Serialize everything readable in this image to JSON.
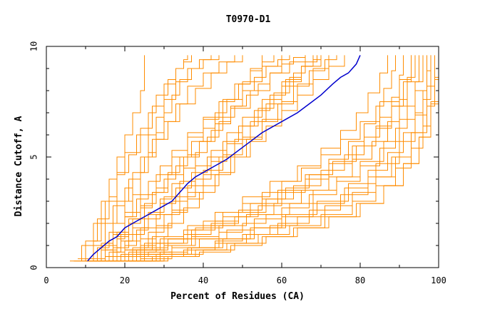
{
  "chart_data": {
    "type": "line",
    "title": "T0970-D1",
    "xlabel": "Percent of Residues (CA)",
    "ylabel": "Distance Cutoff, A",
    "xlim": [
      0,
      100
    ],
    "ylim": [
      0,
      10
    ],
    "x_ticks": [
      "0",
      "20",
      "40",
      "60",
      "80",
      "100"
    ],
    "y_ticks": [
      "0",
      "5",
      "10"
    ],
    "grid": false,
    "background_color": "#ffffff",
    "series_color": "#ff8c00",
    "highlight_color": "#0000cd",
    "highlight": {
      "x": [
        10.5,
        12,
        14,
        16,
        18,
        20,
        23,
        26,
        29,
        32,
        34,
        36,
        38,
        40,
        43,
        46,
        49,
        52,
        55,
        58,
        61,
        64,
        67,
        70,
        73,
        75,
        77,
        79,
        80
      ],
      "y": [
        0.3,
        0.6,
        0.9,
        1.2,
        1.4,
        1.8,
        2.1,
        2.4,
        2.7,
        3.0,
        3.4,
        3.8,
        4.1,
        4.3,
        4.6,
        4.9,
        5.3,
        5.7,
        6.1,
        6.4,
        6.7,
        7.0,
        7.4,
        7.8,
        8.3,
        8.6,
        8.8,
        9.2,
        9.6
      ]
    },
    "series": [
      {
        "x": [
          6,
          9,
          12,
          14,
          16,
          18,
          20,
          22,
          24,
          25,
          25
        ],
        "y": [
          0.3,
          1.0,
          2.0,
          3.0,
          4.0,
          5.0,
          6.0,
          7.0,
          8.0,
          9.0,
          9.6
        ]
      },
      {
        "x": [
          7,
          10,
          12,
          15,
          18,
          20,
          24,
          27,
          30,
          33,
          35,
          37
        ],
        "y": [
          0.3,
          1.0,
          2.0,
          3.0,
          4.2,
          5.2,
          6.3,
          7.3,
          8.3,
          9.0,
          9.3,
          9.6
        ]
      },
      {
        "x": [
          8,
          10,
          13,
          16,
          18,
          21,
          23,
          26,
          28,
          31,
          33,
          35,
          36
        ],
        "y": [
          0.4,
          1.2,
          2.2,
          3.2,
          4.3,
          5.1,
          6.0,
          7.0,
          7.8,
          8.5,
          9.0,
          9.4,
          9.6
        ]
      },
      {
        "x": [
          9,
          12,
          15,
          18,
          21,
          24,
          27,
          30,
          33,
          36,
          40,
          44,
          48
        ],
        "y": [
          0.3,
          1.0,
          2.0,
          3.0,
          4.0,
          5.0,
          5.8,
          6.6,
          7.4,
          8.2,
          8.8,
          9.3,
          9.6
        ]
      },
      {
        "x": [
          10,
          12,
          14,
          17,
          20,
          22,
          25,
          28,
          31,
          34,
          38,
          42,
          46,
          50
        ],
        "y": [
          0.4,
          1.2,
          2.0,
          2.8,
          3.6,
          4.3,
          5.0,
          5.8,
          6.6,
          7.4,
          8.1,
          8.8,
          9.3,
          9.6
        ]
      },
      {
        "x": [
          10,
          13,
          16,
          20,
          24,
          28,
          32,
          36,
          40,
          44,
          48,
          52,
          55
        ],
        "y": [
          0.3,
          0.9,
          1.6,
          2.5,
          3.3,
          4.2,
          5.0,
          5.9,
          6.7,
          7.5,
          8.3,
          9.0,
          9.6
        ]
      },
      {
        "x": [
          11,
          14,
          17,
          20,
          23,
          26,
          29,
          32,
          36,
          40,
          45,
          50,
          55,
          60
        ],
        "y": [
          0.3,
          0.8,
          1.5,
          2.3,
          3.1,
          3.9,
          4.6,
          5.3,
          6.1,
          6.8,
          7.6,
          8.4,
          9.1,
          9.6
        ]
      },
      {
        "x": [
          12,
          15,
          18,
          21,
          24,
          27,
          31,
          35,
          39,
          43,
          47,
          52,
          57,
          62,
          66
        ],
        "y": [
          0.3,
          0.8,
          1.4,
          2.0,
          2.7,
          3.4,
          4.2,
          5.0,
          5.7,
          6.5,
          7.2,
          8.0,
          8.8,
          9.3,
          9.6
        ]
      },
      {
        "x": [
          13,
          16,
          19,
          22,
          26,
          30,
          34,
          38,
          42,
          46,
          50,
          55,
          60,
          65,
          70
        ],
        "y": [
          0.3,
          0.7,
          1.2,
          1.8,
          2.5,
          3.2,
          3.9,
          4.6,
          5.3,
          6.1,
          6.8,
          7.6,
          8.4,
          9.1,
          9.6
        ]
      },
      {
        "x": [
          14,
          17,
          20,
          24,
          28,
          32,
          36,
          40,
          45,
          50,
          55,
          60,
          64,
          68,
          72
        ],
        "y": [
          0.3,
          0.7,
          1.2,
          1.8,
          2.4,
          3.0,
          3.7,
          4.4,
          5.1,
          5.9,
          6.7,
          7.5,
          8.3,
          9.0,
          9.6
        ]
      },
      {
        "x": [
          12,
          15,
          18,
          21,
          24,
          27,
          30,
          33,
          36,
          39,
          42,
          45,
          48,
          51,
          54,
          57,
          60,
          63,
          66
        ],
        "y": [
          0.4,
          1.0,
          1.6,
          2.2,
          2.8,
          3.4,
          4.0,
          4.6,
          5.1,
          5.7,
          6.2,
          6.8,
          7.3,
          7.8,
          8.3,
          8.8,
          9.2,
          9.5,
          9.6
        ]
      },
      {
        "x": [
          15,
          18,
          21,
          25,
          29,
          33,
          37,
          41,
          45,
          49,
          53,
          57,
          61,
          65,
          68
        ],
        "y": [
          0.3,
          0.9,
          1.5,
          2.2,
          2.9,
          3.6,
          4.3,
          5.0,
          5.7,
          6.4,
          7.1,
          7.8,
          8.5,
          9.1,
          9.6
        ]
      },
      {
        "x": [
          16,
          20,
          24,
          28,
          32,
          36,
          40,
          44,
          48,
          52,
          56,
          60,
          64,
          68,
          72,
          76
        ],
        "y": [
          0.3,
          0.8,
          1.3,
          1.9,
          2.5,
          3.1,
          3.7,
          4.3,
          5.0,
          5.7,
          6.4,
          7.1,
          7.8,
          8.5,
          9.1,
          9.6
        ]
      },
      {
        "x": [
          14,
          17,
          19,
          22,
          25,
          28,
          31,
          34,
          37,
          40,
          43,
          46,
          49,
          52,
          55,
          58
        ],
        "y": [
          0.3,
          0.9,
          1.5,
          2.2,
          2.9,
          3.6,
          4.3,
          5.0,
          5.7,
          6.3,
          7.0,
          7.6,
          8.3,
          8.9,
          9.3,
          9.6
        ]
      },
      {
        "x": [
          17,
          20,
          23,
          26,
          29,
          32,
          35,
          38,
          41,
          44,
          47,
          50,
          53,
          56,
          59,
          62
        ],
        "y": [
          0.3,
          1.0,
          1.7,
          2.4,
          3.1,
          3.8,
          4.5,
          5.2,
          5.9,
          6.6,
          7.3,
          8.0,
          8.6,
          9.1,
          9.4,
          9.6
        ]
      },
      {
        "x": [
          18,
          22,
          26,
          30,
          34,
          38,
          42,
          46,
          50,
          54,
          58,
          62,
          65,
          68,
          70
        ],
        "y": [
          0.3,
          0.9,
          1.6,
          2.4,
          3.2,
          4.0,
          4.8,
          5.6,
          6.4,
          7.2,
          7.9,
          8.6,
          9.1,
          9.4,
          9.6
        ]
      },
      {
        "x": [
          11,
          14,
          17,
          20,
          22,
          24,
          26,
          28,
          30,
          33,
          36,
          39,
          42
        ],
        "y": [
          0.3,
          1.1,
          2.0,
          3.0,
          4.0,
          5.0,
          6.0,
          6.8,
          7.6,
          8.4,
          9.0,
          9.4,
          9.6
        ]
      },
      {
        "x": [
          19,
          23,
          27,
          31,
          35,
          39,
          43,
          47,
          51,
          55,
          59,
          63,
          67,
          71,
          74
        ],
        "y": [
          0.3,
          0.8,
          1.4,
          2.0,
          2.7,
          3.4,
          4.2,
          5.0,
          5.8,
          6.6,
          7.4,
          8.2,
          8.9,
          9.4,
          9.6
        ]
      },
      {
        "x": [
          20,
          24,
          28,
          32,
          36,
          40,
          44,
          48,
          52,
          56,
          60,
          63,
          66,
          69
        ],
        "y": [
          0.3,
          1.0,
          1.8,
          2.6,
          3.4,
          4.2,
          5.0,
          5.8,
          6.6,
          7.4,
          8.2,
          8.8,
          9.3,
          9.6
        ]
      },
      {
        "x": [
          16,
          18,
          20,
          22,
          24,
          26,
          28,
          30,
          32,
          34,
          37,
          40,
          44
        ],
        "y": [
          0.3,
          1.3,
          2.3,
          3.3,
          4.3,
          5.2,
          6.1,
          7.0,
          7.8,
          8.5,
          9.0,
          9.4,
          9.6
        ]
      },
      {
        "x": [
          10,
          15,
          20,
          25,
          30,
          35,
          40,
          45,
          50,
          55,
          60,
          65,
          70,
          75,
          80,
          85,
          90,
          93
        ],
        "y": [
          0.3,
          0.5,
          0.8,
          1.1,
          1.4,
          1.7,
          2.1,
          2.5,
          2.9,
          3.4,
          3.9,
          4.5,
          5.1,
          5.8,
          6.6,
          7.5,
          8.5,
          9.6
        ]
      },
      {
        "x": [
          12,
          18,
          24,
          30,
          36,
          42,
          48,
          54,
          60,
          66,
          72,
          78,
          84,
          88,
          92,
          95
        ],
        "y": [
          0.3,
          0.5,
          0.8,
          1.1,
          1.5,
          1.9,
          2.3,
          2.8,
          3.4,
          4.0,
          4.7,
          5.5,
          6.4,
          7.3,
          8.4,
          9.6
        ]
      },
      {
        "x": [
          14,
          20,
          26,
          32,
          38,
          44,
          50,
          56,
          62,
          68,
          74,
          80,
          86,
          90,
          94,
          97
        ],
        "y": [
          0.3,
          0.5,
          0.7,
          1.0,
          1.3,
          1.6,
          2.0,
          2.4,
          2.9,
          3.5,
          4.1,
          4.8,
          5.7,
          6.7,
          8.0,
          9.6
        ]
      },
      {
        "x": [
          15,
          22,
          29,
          36,
          43,
          50,
          57,
          64,
          71,
          78,
          84,
          89,
          93,
          96,
          98
        ],
        "y": [
          0.3,
          0.5,
          0.7,
          0.9,
          1.2,
          1.5,
          1.9,
          2.3,
          2.8,
          3.4,
          4.1,
          5.0,
          6.1,
          7.6,
          9.6
        ]
      },
      {
        "x": [
          16,
          24,
          32,
          40,
          48,
          56,
          64,
          72,
          80,
          86,
          91,
          95,
          98,
          100
        ],
        "y": [
          0.3,
          0.4,
          0.6,
          0.8,
          1.1,
          1.4,
          1.8,
          2.3,
          2.9,
          3.7,
          4.7,
          5.9,
          7.4,
          9.6
        ]
      },
      {
        "x": [
          13,
          19,
          25,
          31,
          37,
          43,
          49,
          55,
          61,
          67,
          73,
          79,
          84,
          88,
          91,
          93
        ],
        "y": [
          0.3,
          0.6,
          0.9,
          1.3,
          1.7,
          2.1,
          2.6,
          3.1,
          3.6,
          4.2,
          4.8,
          5.5,
          6.3,
          7.3,
          8.4,
          9.6
        ]
      },
      {
        "x": [
          18,
          25,
          32,
          39,
          46,
          53,
          60,
          67,
          74,
          80,
          85,
          89,
          92,
          94,
          96
        ],
        "y": [
          0.3,
          0.6,
          0.9,
          1.3,
          1.7,
          2.2,
          2.7,
          3.3,
          3.9,
          4.6,
          5.4,
          6.3,
          7.3,
          8.4,
          9.6
        ]
      },
      {
        "x": [
          20,
          28,
          36,
          44,
          52,
          60,
          68,
          76,
          82,
          87,
          91,
          94,
          96,
          97,
          98
        ],
        "y": [
          0.3,
          0.6,
          0.9,
          1.3,
          1.8,
          2.3,
          2.9,
          3.6,
          4.4,
          5.2,
          6.1,
          7.0,
          8.0,
          8.9,
          9.6
        ]
      },
      {
        "x": [
          14,
          21,
          28,
          35,
          42,
          49,
          56,
          63,
          70,
          76,
          81,
          85,
          88,
          90,
          91
        ],
        "y": [
          0.3,
          0.7,
          1.1,
          1.5,
          2.0,
          2.5,
          3.1,
          3.7,
          4.4,
          5.1,
          5.9,
          6.8,
          7.7,
          8.7,
          9.6
        ]
      },
      {
        "x": [
          17,
          24,
          31,
          38,
          45,
          52,
          59,
          66,
          72,
          77,
          81,
          84,
          86,
          88,
          89
        ],
        "y": [
          0.3,
          0.8,
          1.3,
          1.8,
          2.3,
          2.9,
          3.5,
          4.2,
          4.9,
          5.7,
          6.5,
          7.3,
          8.1,
          8.9,
          9.6
        ]
      },
      {
        "x": [
          22,
          30,
          38,
          46,
          54,
          62,
          70,
          78,
          84,
          89,
          93,
          96,
          98,
          99,
          100
        ],
        "y": [
          0.3,
          0.5,
          0.8,
          1.1,
          1.5,
          1.9,
          2.4,
          3.0,
          3.7,
          4.5,
          5.4,
          6.4,
          7.5,
          8.6,
          9.6
        ]
      },
      {
        "x": [
          15,
          22,
          29,
          36,
          43,
          50,
          57,
          64,
          70,
          75,
          79,
          82,
          85,
          87
        ],
        "y": [
          0.3,
          0.8,
          1.3,
          1.9,
          2.5,
          3.2,
          3.9,
          4.6,
          5.4,
          6.2,
          7.0,
          7.9,
          8.8,
          9.6
        ]
      },
      {
        "x": [
          19,
          27,
          35,
          43,
          51,
          59,
          67,
          75,
          82,
          88,
          93,
          97,
          99,
          100
        ],
        "y": [
          0.3,
          0.5,
          0.8,
          1.1,
          1.5,
          2.0,
          2.6,
          3.3,
          4.1,
          5.0,
          6.1,
          7.3,
          8.5,
          9.6
        ]
      },
      {
        "x": [
          21,
          29,
          37,
          45,
          53,
          61,
          69,
          77,
          84,
          90,
          94,
          97,
          99
        ],
        "y": [
          0.3,
          0.6,
          0.9,
          1.3,
          1.8,
          2.4,
          3.0,
          3.8,
          4.7,
          5.7,
          6.9,
          8.2,
          9.6
        ]
      },
      {
        "x": [
          16,
          23,
          30,
          37,
          44,
          51,
          58,
          65,
          72,
          78,
          83,
          87,
          90,
          92,
          94
        ],
        "y": [
          0.3,
          0.6,
          1.0,
          1.4,
          1.9,
          2.4,
          2.9,
          3.5,
          4.1,
          4.9,
          5.7,
          6.6,
          7.6,
          8.6,
          9.6
        ]
      },
      {
        "x": [
          23,
          31,
          39,
          47,
          55,
          63,
          71,
          79,
          86,
          91,
          95,
          98,
          100
        ],
        "y": [
          0.3,
          0.5,
          0.7,
          1.0,
          1.4,
          1.8,
          2.3,
          2.9,
          3.7,
          4.7,
          5.9,
          7.5,
          9.6
        ]
      }
    ]
  }
}
